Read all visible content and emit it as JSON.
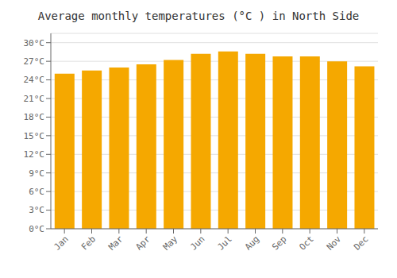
{
  "chart_data": {
    "type": "bar",
    "title": "Average monthly temperatures (°C ) in North Side",
    "categories": [
      "Jan",
      "Feb",
      "Mar",
      "Apr",
      "May",
      "Jun",
      "Jul",
      "Aug",
      "Sep",
      "Oct",
      "Nov",
      "Dec"
    ],
    "values": [
      25.0,
      25.5,
      26.0,
      26.5,
      27.2,
      28.2,
      28.6,
      28.2,
      27.8,
      27.8,
      27.0,
      26.2
    ],
    "color": "#F5A800",
    "ylim": [
      0,
      31.5
    ],
    "yticks": [
      {
        "value": 0,
        "label": "0°C"
      },
      {
        "value": 3,
        "label": "3°C"
      },
      {
        "value": 6,
        "label": "6°C"
      },
      {
        "value": 9,
        "label": "9°C"
      },
      {
        "value": 12,
        "label": "12°C"
      },
      {
        "value": 15,
        "label": "15°C"
      },
      {
        "value": 18,
        "label": "18°C"
      },
      {
        "value": 21,
        "label": "21°C"
      },
      {
        "value": 24,
        "label": "24°C"
      },
      {
        "value": 27,
        "label": "27°C"
      },
      {
        "value": 30,
        "label": "30°C"
      }
    ],
    "grid": true
  }
}
